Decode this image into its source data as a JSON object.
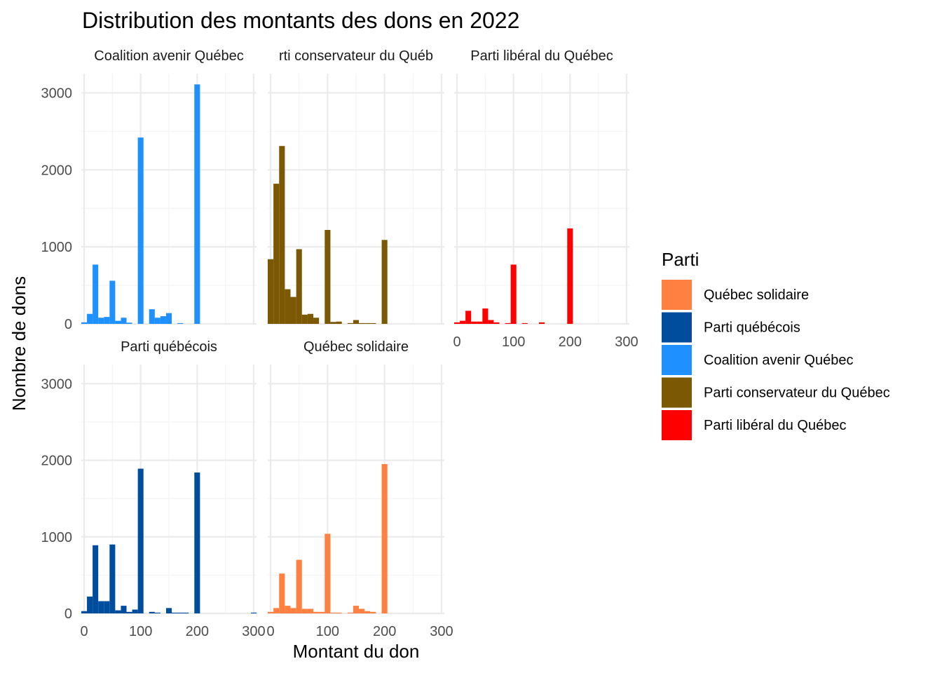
{
  "chart_data": {
    "type": "bar",
    "subtype": "faceted-histogram",
    "title": "Distribution des montants des dons en 2022",
    "xlabel": "Montant du don",
    "ylabel": "Nombre de dons",
    "xlim": [
      -5,
      305
    ],
    "ylim": [
      0,
      3250
    ],
    "x_ticks": [
      0,
      100,
      200,
      300
    ],
    "y_ticks": [
      0,
      1000,
      2000,
      3000
    ],
    "grid": true,
    "bin_width": 10,
    "legend": {
      "title": "Parti",
      "position": "right",
      "entries": [
        {
          "label": "Québec solidaire",
          "color": "#FF8040"
        },
        {
          "label": "Parti québécois",
          "color": "#004C9D"
        },
        {
          "label": "Coalition avenir Québec",
          "color": "#1E90FF"
        },
        {
          "label": "Parti conservateur du Québec",
          "color": "#7B5803"
        },
        {
          "label": "Parti libéral du Québec",
          "color": "#FF0000"
        }
      ]
    },
    "panels": [
      {
        "label": "Coalition avenir Québec",
        "strip_text": "Coalition avenir Québec",
        "color": "#1E90FF",
        "x": [
          0,
          10,
          20,
          30,
          40,
          50,
          60,
          70,
          80,
          100,
          120,
          130,
          140,
          150,
          170,
          200
        ],
        "values": [
          20,
          130,
          770,
          80,
          90,
          560,
          40,
          80,
          15,
          2420,
          190,
          80,
          100,
          140,
          10,
          3110
        ]
      },
      {
        "label": "Parti conservateur du Québec",
        "strip_text": "rti conservateur du Québ",
        "color": "#7B5803",
        "x": [
          0,
          10,
          20,
          30,
          40,
          50,
          60,
          70,
          80,
          100,
          110,
          120,
          140,
          150,
          160,
          170,
          180,
          200
        ],
        "values": [
          840,
          1820,
          2310,
          450,
          350,
          970,
          120,
          130,
          80,
          1220,
          25,
          30,
          10,
          50,
          10,
          10,
          10,
          1090
        ]
      },
      {
        "label": "Parti libéral du Québec",
        "strip_text": "Parti libéral du Québec",
        "color": "#FF0000",
        "x": [
          0,
          10,
          20,
          30,
          40,
          50,
          60,
          70,
          90,
          100,
          120,
          150,
          200
        ],
        "values": [
          20,
          40,
          170,
          30,
          30,
          200,
          50,
          20,
          10,
          770,
          10,
          20,
          1240
        ]
      },
      {
        "label": "Parti québécois",
        "strip_text": "Parti québécois",
        "color": "#004C9D",
        "x": [
          0,
          10,
          20,
          30,
          40,
          50,
          60,
          70,
          80,
          90,
          100,
          120,
          130,
          150,
          160,
          170,
          180,
          200,
          300
        ],
        "values": [
          30,
          220,
          890,
          160,
          160,
          900,
          40,
          100,
          20,
          50,
          1890,
          20,
          10,
          70,
          10,
          10,
          10,
          1840,
          10
        ]
      },
      {
        "label": "Québec solidaire",
        "strip_text": "Québec solidaire",
        "color": "#FF8040",
        "x": [
          0,
          10,
          20,
          30,
          40,
          50,
          60,
          70,
          80,
          90,
          100,
          110,
          120,
          140,
          150,
          160,
          170,
          180,
          200
        ],
        "values": [
          20,
          70,
          520,
          100,
          70,
          700,
          60,
          60,
          20,
          20,
          1040,
          10,
          10,
          10,
          100,
          60,
          30,
          20,
          1950
        ]
      }
    ]
  }
}
